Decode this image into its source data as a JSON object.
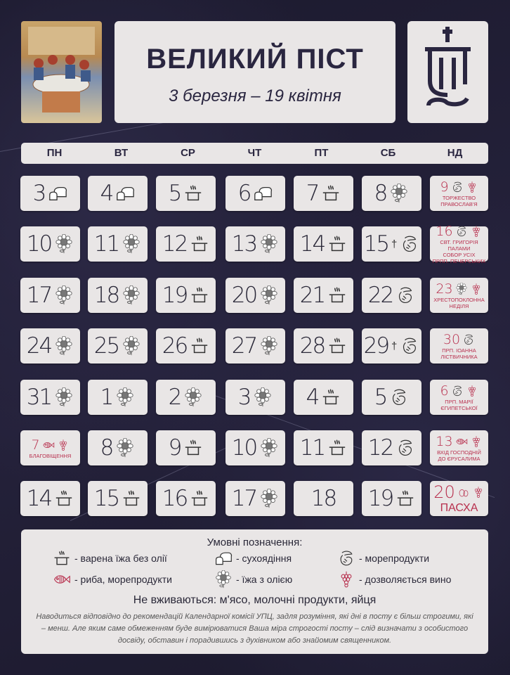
{
  "header": {
    "title": "ВЕЛИКИЙ ПІСТ",
    "dates": "3 березня – 19 квітня",
    "logo_text": "УПЦ"
  },
  "weekdays": [
    "ПН",
    "ВТ",
    "СР",
    "ЧТ",
    "ПТ",
    "СБ",
    "НД"
  ],
  "colors": {
    "background": "#1f1c33",
    "card": "#e9e6e6",
    "holiday_text": "#b8304e"
  },
  "calendar": [
    [
      {
        "day": "3",
        "icons": [
          "bread"
        ]
      },
      {
        "day": "4",
        "icons": [
          "bread"
        ]
      },
      {
        "day": "5",
        "icons": [
          "pot"
        ]
      },
      {
        "day": "6",
        "icons": [
          "bread"
        ]
      },
      {
        "day": "7",
        "icons": [
          "pot"
        ]
      },
      {
        "day": "8",
        "icons": [
          "sunflower"
        ]
      },
      {
        "day": "9",
        "icons": [
          "shrimp",
          "grapes"
        ],
        "label": "Торжество\nПравослав'я"
      }
    ],
    [
      {
        "day": "10",
        "icons": [
          "sunflower"
        ]
      },
      {
        "day": "11",
        "icons": [
          "sunflower"
        ]
      },
      {
        "day": "12",
        "icons": [
          "pot"
        ]
      },
      {
        "day": "13",
        "icons": [
          "sunflower"
        ]
      },
      {
        "day": "14",
        "icons": [
          "pot"
        ]
      },
      {
        "day": "15",
        "cross": "†",
        "icons": [
          "shrimp"
        ]
      },
      {
        "day": "16",
        "icons": [
          "shrimp",
          "grapes"
        ],
        "label": "Свт. Григорія Палами\nСобор усіх\nпрпп. Печерських"
      }
    ],
    [
      {
        "day": "17",
        "icons": [
          "sunflower"
        ]
      },
      {
        "day": "18",
        "icons": [
          "sunflower"
        ]
      },
      {
        "day": "19",
        "icons": [
          "pot"
        ]
      },
      {
        "day": "20",
        "icons": [
          "sunflower"
        ]
      },
      {
        "day": "21",
        "icons": [
          "pot"
        ]
      },
      {
        "day": "22",
        "icons": [
          "shrimp"
        ]
      },
      {
        "day": "23",
        "icons": [
          "sunflower",
          "grapes"
        ],
        "label": "Хрестопоклонна\nнеділя"
      }
    ],
    [
      {
        "day": "24",
        "icons": [
          "sunflower"
        ]
      },
      {
        "day": "25",
        "icons": [
          "sunflower"
        ]
      },
      {
        "day": "26",
        "icons": [
          "pot"
        ]
      },
      {
        "day": "27",
        "icons": [
          "sunflower"
        ]
      },
      {
        "day": "28",
        "icons": [
          "pot"
        ]
      },
      {
        "day": "29",
        "cross": "†",
        "icons": [
          "shrimp"
        ]
      },
      {
        "day": "30",
        "icons": [
          "shrimp"
        ],
        "label": "Прп. Іоанна\nЛіствичника"
      }
    ],
    [
      {
        "day": "31",
        "icons": [
          "sunflower"
        ]
      },
      {
        "day": "1",
        "icons": [
          "sunflower"
        ]
      },
      {
        "day": "2",
        "icons": [
          "sunflower"
        ]
      },
      {
        "day": "3",
        "icons": [
          "sunflower"
        ]
      },
      {
        "day": "4",
        "icons": [
          "pot"
        ]
      },
      {
        "day": "5",
        "icons": [
          "shrimp"
        ]
      },
      {
        "day": "6",
        "icons": [
          "shrimp",
          "grapes"
        ],
        "label": "Прп. Марії\nЄгипетської"
      }
    ],
    [
      {
        "day": "7",
        "icons": [
          "fish",
          "grapes"
        ],
        "label": "Благовіщення"
      },
      {
        "day": "8",
        "icons": [
          "sunflower"
        ]
      },
      {
        "day": "9",
        "icons": [
          "pot"
        ]
      },
      {
        "day": "10",
        "icons": [
          "sunflower"
        ]
      },
      {
        "day": "11",
        "icons": [
          "pot"
        ]
      },
      {
        "day": "12",
        "icons": [
          "shrimp"
        ]
      },
      {
        "day": "13",
        "icons": [
          "fish",
          "grapes"
        ],
        "label": "Вхід Господній\nдо Єрусалима"
      }
    ],
    [
      {
        "day": "14",
        "icons": [
          "pot"
        ]
      },
      {
        "day": "15",
        "icons": [
          "pot"
        ]
      },
      {
        "day": "16",
        "icons": [
          "pot"
        ]
      },
      {
        "day": "17",
        "icons": [
          "sunflower"
        ]
      },
      {
        "day": "18",
        "icons": []
      },
      {
        "day": "19",
        "icons": [
          "pot"
        ]
      },
      {
        "day": "20",
        "icons": [
          "easter-eggs",
          "grapes"
        ],
        "label": "Пасха",
        "big": true
      }
    ]
  ],
  "legend": {
    "title": "Умовні позначення:",
    "items": [
      {
        "icon": "pot",
        "label": "- варена їжа без олії"
      },
      {
        "icon": "bread",
        "label": "- сухоядіння"
      },
      {
        "icon": "shrimp",
        "label": "- морепродукти"
      },
      {
        "icon": "fish",
        "label": "- риба, морепродукти"
      },
      {
        "icon": "sunflower",
        "label": "- їжа з олією"
      },
      {
        "icon": "grapes",
        "label": "- дозволяється вино"
      }
    ],
    "not_used": "Не вживаються: м'ясо, молочні продукти, яйця",
    "note": "Наводиться відповідно до рекомендацій Календарної комісії УПЦ, задля розуміння, які дні в посту є більш строгими, які – менш. Але яким саме обмеженням буде вимірюватися Ваша міра строгості посту – слід визначати з особистого досвіду, обставин і порадившись з духівником або знайомим священником."
  }
}
